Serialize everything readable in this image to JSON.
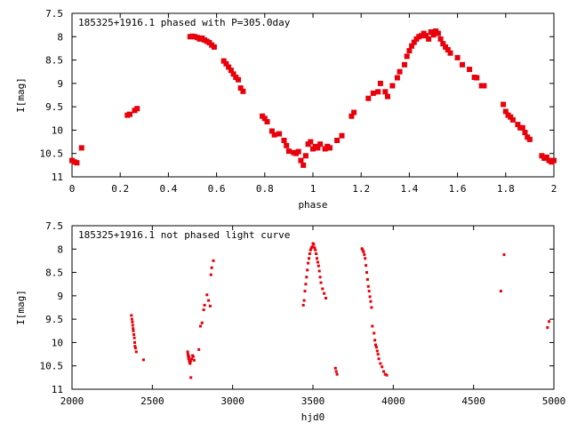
{
  "chart_data": [
    {
      "type": "scatter",
      "title": "185325+1916.1 phased with P=305.0day",
      "xlabel": "phase",
      "ylabel": "I[mag]",
      "xlim": [
        0,
        2
      ],
      "ylim": [
        11,
        7.5
      ],
      "y_inverted": true,
      "grid": false,
      "legend": "none",
      "marker_color": "#e8000b",
      "xticks": [
        0,
        0.2,
        0.4,
        0.6,
        0.8,
        1,
        1.2,
        1.4,
        1.6,
        1.8,
        2
      ],
      "xtick_labels": [
        "0",
        "0.2",
        "0.4",
        "0.6",
        "0.8",
        "1",
        "1.2",
        "1.4",
        "1.6",
        "1.8",
        "2"
      ],
      "yticks": [
        7.5,
        8,
        8.5,
        9,
        9.5,
        10,
        10.5,
        11
      ],
      "ytick_labels": [
        "7.5",
        "8",
        "8.5",
        "9",
        "9.5",
        "10",
        "10.5",
        "11"
      ],
      "series": [
        {
          "x": [
            0.0,
            0.01,
            0.02,
            0.04,
            0.23,
            0.24,
            0.26,
            0.27,
            0.49,
            0.5,
            0.51,
            0.52,
            0.53,
            0.54,
            0.55,
            0.56,
            0.57,
            0.58,
            0.59,
            0.63,
            0.64,
            0.65,
            0.66,
            0.67,
            0.68,
            0.69,
            0.7,
            0.71,
            0.79,
            0.8,
            0.81,
            0.83,
            0.84,
            0.86,
            0.88,
            0.89,
            0.9,
            0.92,
            0.93,
            0.94,
            0.95,
            0.96,
            0.97,
            0.98,
            0.99,
            1.0,
            1.01,
            1.02,
            1.03,
            1.05,
            1.06,
            1.07,
            1.1,
            1.12,
            1.16,
            1.17,
            1.23,
            1.25,
            1.27,
            1.28,
            1.3,
            1.31,
            1.33,
            1.35,
            1.36,
            1.38,
            1.39,
            1.4,
            1.41,
            1.42,
            1.43,
            1.44,
            1.45,
            1.46,
            1.47,
            1.48,
            1.49,
            1.5,
            1.51,
            1.52,
            1.53,
            1.54,
            1.55,
            1.56,
            1.57,
            1.6,
            1.62,
            1.65,
            1.67,
            1.68,
            1.7,
            1.71,
            1.79,
            1.8,
            1.81,
            1.82,
            1.83,
            1.85,
            1.86,
            1.87,
            1.88,
            1.89,
            1.9,
            1.95,
            1.96,
            1.97,
            1.98,
            1.99,
            2.0
          ],
          "y": [
            10.65,
            10.68,
            10.7,
            10.38,
            9.68,
            9.66,
            9.58,
            9.54,
            8.0,
            7.99,
            8.0,
            8.02,
            8.05,
            8.03,
            8.07,
            8.1,
            8.13,
            8.18,
            8.22,
            8.52,
            8.58,
            8.65,
            8.72,
            8.8,
            8.87,
            8.92,
            9.1,
            9.17,
            9.7,
            9.75,
            9.82,
            10.02,
            10.1,
            10.08,
            10.22,
            10.33,
            10.45,
            10.48,
            10.5,
            10.46,
            10.65,
            10.75,
            10.55,
            10.3,
            10.25,
            10.4,
            10.35,
            10.38,
            10.3,
            10.4,
            10.35,
            10.38,
            10.22,
            10.12,
            9.7,
            9.62,
            9.32,
            9.21,
            9.18,
            9.0,
            9.18,
            9.28,
            9.05,
            8.88,
            8.75,
            8.6,
            8.42,
            8.3,
            8.2,
            8.12,
            8.05,
            8.0,
            7.98,
            7.93,
            7.98,
            8.05,
            7.9,
            7.96,
            7.88,
            7.93,
            8.05,
            8.15,
            8.22,
            8.28,
            8.35,
            8.45,
            8.6,
            8.7,
            8.87,
            8.88,
            9.05,
            9.05,
            9.45,
            9.6,
            9.68,
            9.72,
            9.78,
            9.88,
            9.95,
            9.95,
            10.05,
            10.15,
            10.2,
            10.55,
            10.6,
            10.58,
            10.65,
            10.68,
            10.65
          ]
        }
      ]
    },
    {
      "type": "scatter",
      "title": "185325+1916.1 not phased light curve",
      "xlabel": "hjd0",
      "ylabel": "I[mag]",
      "xlim": [
        2000,
        5000
      ],
      "ylim": [
        11,
        7.5
      ],
      "y_inverted": true,
      "grid": false,
      "legend": "none",
      "marker_color": "#e8000b",
      "xticks": [
        2000,
        2500,
        3000,
        3500,
        4000,
        4500,
        5000
      ],
      "xtick_labels": [
        "2000",
        "2500",
        "3000",
        "3500",
        "4000",
        "4500",
        "5000"
      ],
      "yticks": [
        7.5,
        8,
        8.5,
        9,
        9.5,
        10,
        10.5,
        11
      ],
      "ytick_labels": [
        "7.5",
        "8",
        "8.5",
        "9",
        "9.5",
        "10",
        "10.5",
        "11"
      ],
      "series": [
        {
          "x": [
            2370,
            2373,
            2376,
            2378,
            2380,
            2382,
            2385,
            2388,
            2390,
            2392,
            2395,
            2400,
            2445,
            2720,
            2722,
            2724,
            2726,
            2728,
            2730,
            2732,
            2735,
            2738,
            2740,
            2745,
            2750,
            2755,
            2760,
            2790,
            2800,
            2810,
            2820,
            2825,
            2840,
            2850,
            2860,
            2865,
            2870,
            2880,
            3440,
            3445,
            3450,
            3455,
            3460,
            3465,
            3470,
            3475,
            3480,
            3485,
            3490,
            3495,
            3500,
            3505,
            3510,
            3515,
            3520,
            3525,
            3530,
            3535,
            3540,
            3545,
            3550,
            3560,
            3570,
            3580,
            3640,
            3645,
            3650,
            3805,
            3810,
            3815,
            3820,
            3825,
            3830,
            3835,
            3840,
            3845,
            3850,
            3855,
            3860,
            3865,
            3870,
            3880,
            3885,
            3890,
            3895,
            3900,
            3905,
            3910,
            3920,
            3930,
            3940,
            3950,
            3960,
            4670,
            4690,
            4960,
            4970
          ],
          "y": [
            9.42,
            9.5,
            9.56,
            9.63,
            9.7,
            9.75,
            9.83,
            9.9,
            10.0,
            10.08,
            10.12,
            10.2,
            10.37,
            10.2,
            10.25,
            10.3,
            10.35,
            10.3,
            10.38,
            10.42,
            10.45,
            10.4,
            10.75,
            10.35,
            10.28,
            10.3,
            10.38,
            10.15,
            9.65,
            9.58,
            9.3,
            9.2,
            8.98,
            9.1,
            9.22,
            8.55,
            8.4,
            8.25,
            9.2,
            9.1,
            8.9,
            8.75,
            8.6,
            8.45,
            8.3,
            8.2,
            8.1,
            8.02,
            7.98,
            7.95,
            7.88,
            7.9,
            7.97,
            8.02,
            8.1,
            8.2,
            8.28,
            8.36,
            8.47,
            8.6,
            8.72,
            8.85,
            8.95,
            9.05,
            10.55,
            10.62,
            10.68,
            7.99,
            8.02,
            8.06,
            8.12,
            8.2,
            8.35,
            8.5,
            8.65,
            8.8,
            8.9,
            9.02,
            9.12,
            9.25,
            9.65,
            9.8,
            9.95,
            10.05,
            10.1,
            10.18,
            10.25,
            10.35,
            10.45,
            10.52,
            10.62,
            10.68,
            10.7,
            8.9,
            8.12,
            9.68,
            9.55
          ]
        }
      ]
    }
  ]
}
